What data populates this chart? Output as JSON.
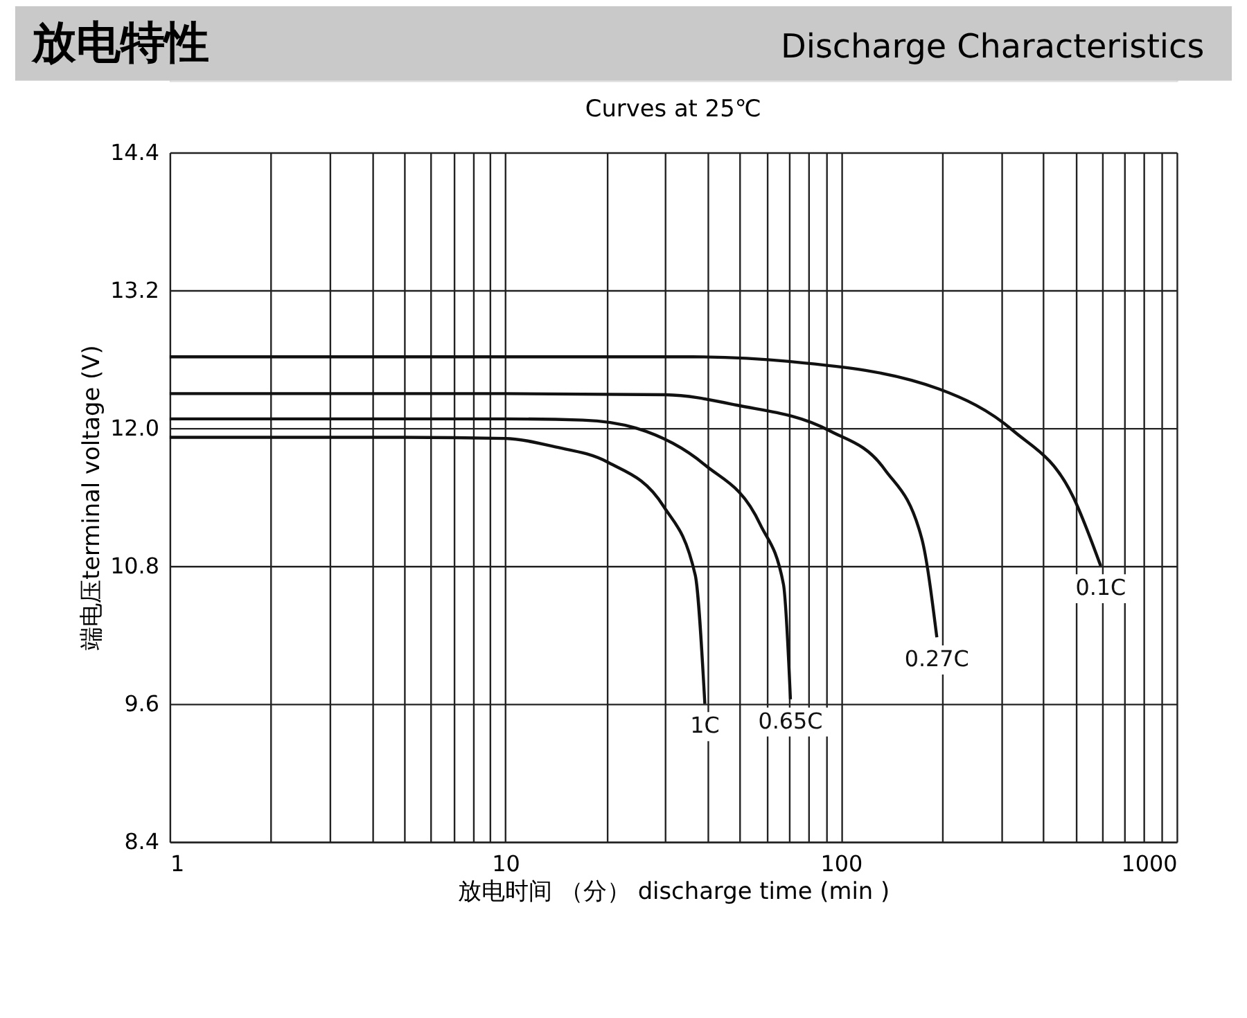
{
  "chart_data": {
    "type": "line",
    "title": "放电特性",
    "subtitle": "Discharge Characteristics",
    "annotations": [
      "Curves at 25℃"
    ],
    "xlabel": "放电时间 （分） discharge time (min )",
    "ylabel": "端电压terminal voltage (V)",
    "log": "x",
    "grid": true,
    "marker": "none",
    "line_style": "solid",
    "xlim": [
      1,
      1000
    ],
    "xticks": [
      1,
      {
        "value": 2,
        "label": null
      },
      {
        "value": 3,
        "label": null
      },
      {
        "value": 4,
        "label": null
      },
      {
        "value": 5,
        "label": null
      },
      {
        "value": 6,
        "label": null
      },
      {
        "value": 7,
        "label": null
      },
      {
        "value": 8,
        "label": null
      },
      {
        "value": 9,
        "label": null
      },
      10,
      {
        "value": 20,
        "label": null
      },
      {
        "value": 30,
        "label": null
      },
      {
        "value": 40,
        "label": null
      },
      {
        "value": 50,
        "label": null
      },
      {
        "value": 60,
        "label": null
      },
      {
        "value": 70,
        "label": null
      },
      {
        "value": 80,
        "label": null
      },
      {
        "value": 90,
        "label": null
      },
      100,
      {
        "value": 200,
        "label": null
      },
      {
        "value": 300,
        "label": null
      },
      {
        "value": 400,
        "label": null
      },
      {
        "value": 500,
        "label": null
      },
      {
        "value": 600,
        "label": null
      },
      {
        "value": 700,
        "label": null
      },
      {
        "value": 800,
        "label": null
      },
      {
        "value": 900,
        "label": null
      },
      1000
    ],
    "ylim": [
      8.4,
      14.4
    ],
    "yticks": [
      {
        "value": 8.4,
        "label": "8.4"
      },
      {
        "value": 9.6,
        "label": "9.6"
      },
      {
        "value": 10.8,
        "label": "10.8"
      },
      {
        "value": 12,
        "label": "12.0"
      },
      {
        "value": 13.2,
        "label": "13.2"
      },
      {
        "value": 14.4,
        "label": "14.4"
      }
    ],
    "series": [
      {
        "name": "1C",
        "color": "#111111",
        "x": [
          1,
          5,
          10,
          13.9,
          20.3,
          29.6,
          36.8,
          39.3
        ],
        "values": [
          11.92,
          11.92,
          11.91,
          11.84,
          11.7,
          11.32,
          10.72,
          9.6
        ]
      },
      {
        "name": "0.65C",
        "color": "#111111",
        "x": [
          1,
          10,
          17,
          24.5,
          39.3,
          57.5,
          67.4,
          70.7
        ],
        "values": [
          12.08,
          12.08,
          12.07,
          12.0,
          11.68,
          11.16,
          10.64,
          9.64
        ]
      },
      {
        "name": "0.27C",
        "color": "#111111",
        "x": [
          1,
          10,
          30,
          48.9,
          92,
          135,
          174,
          193
        ],
        "values": [
          12.3,
          12.3,
          12.29,
          12.2,
          11.98,
          11.64,
          11.04,
          10.18
        ]
      },
      {
        "name": "0.1C",
        "color": "#111111",
        "x": [
          1,
          10,
          36,
          70,
          196,
          325,
          492,
          594
        ],
        "values": [
          12.62,
          12.62,
          12.62,
          12.58,
          12.34,
          11.98,
          11.4,
          10.8
        ]
      }
    ]
  }
}
